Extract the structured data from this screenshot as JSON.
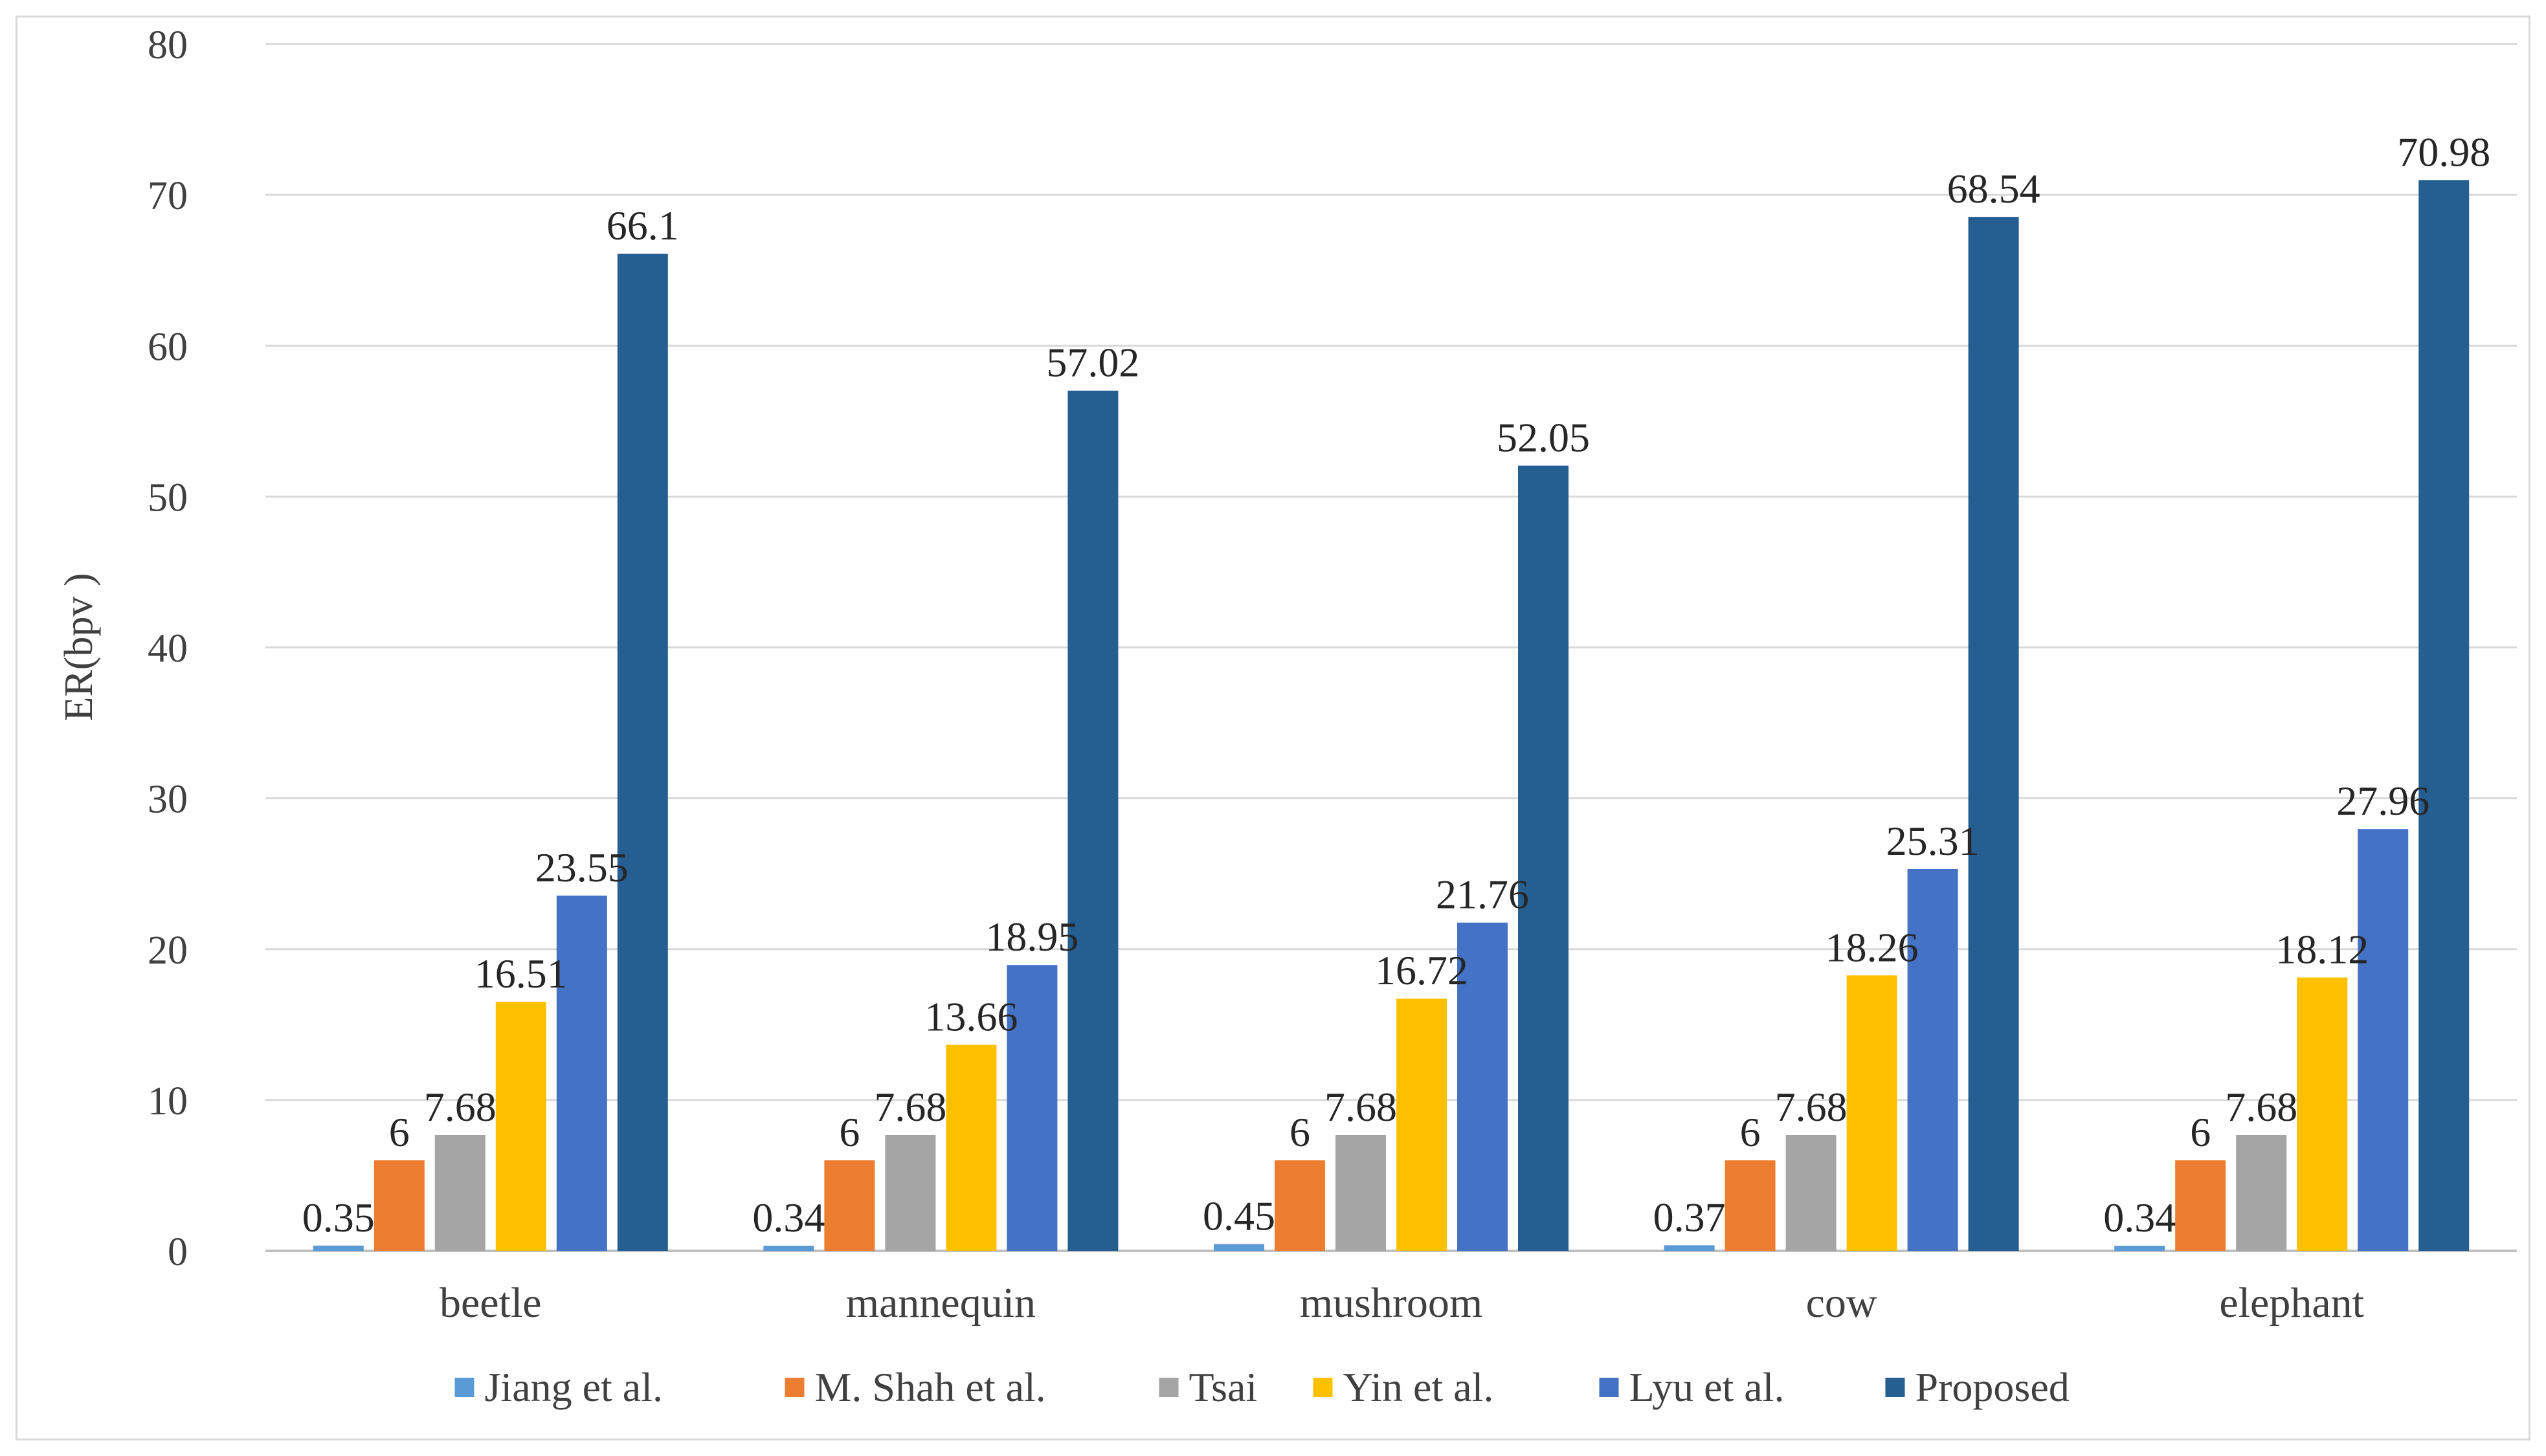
{
  "chart_data": {
    "type": "bar",
    "title": "",
    "xlabel": "",
    "ylabel": "ER(bpv )",
    "ylim": [
      0,
      80
    ],
    "yticks": [
      0,
      10,
      20,
      30,
      40,
      50,
      60,
      70,
      80
    ],
    "grid": true,
    "legend_position": "bottom-center",
    "categories": [
      "beetle",
      "mannequin",
      "mushroom",
      "cow",
      "elephant"
    ],
    "series": [
      {
        "name": "Jiang et al.",
        "color": "#5b9bd5",
        "values": [
          0.35,
          0.34,
          0.45,
          0.37,
          0.34
        ]
      },
      {
        "name": "M. Shah et al.",
        "color": "#ed7d31",
        "values": [
          6,
          6,
          6,
          6,
          6
        ]
      },
      {
        "name": "Tsai",
        "color": "#a5a5a5",
        "values": [
          7.68,
          7.68,
          7.68,
          7.68,
          7.68
        ]
      },
      {
        "name": "Yin et al.",
        "color": "#ffc000",
        "values": [
          16.51,
          13.66,
          16.72,
          18.26,
          18.12
        ]
      },
      {
        "name": "Lyu et al.",
        "color": "#4472c4",
        "values": [
          23.55,
          18.95,
          21.76,
          25.31,
          27.96
        ]
      },
      {
        "name": "Proposed",
        "color": "#255e91",
        "values": [
          66.1,
          57.02,
          52.05,
          68.54,
          70.98
        ]
      }
    ]
  }
}
